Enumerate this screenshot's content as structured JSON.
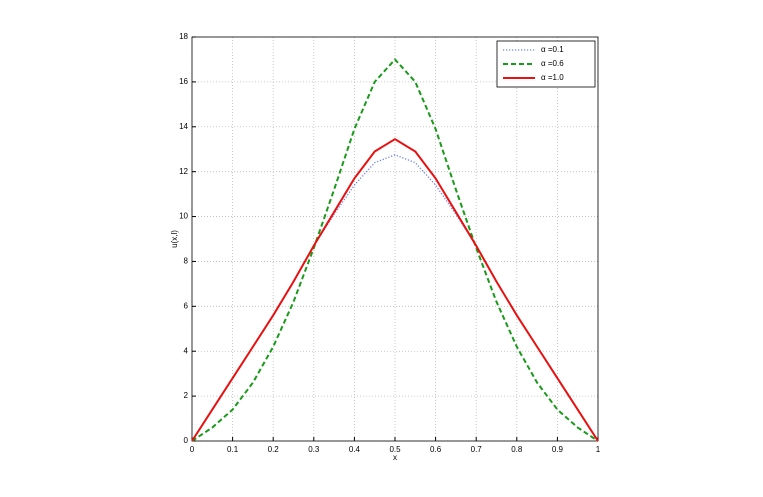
{
  "chart_data": {
    "type": "line",
    "x_label": "x",
    "y_label": "u(x,l)",
    "x": [
      0,
      0.05,
      0.1,
      0.15,
      0.2,
      0.25,
      0.3,
      0.35,
      0.4,
      0.45,
      0.5,
      0.55,
      0.6,
      0.65,
      0.7,
      0.75,
      0.8,
      0.85,
      0.9,
      0.95,
      1
    ],
    "series": [
      {
        "name": "α =0.1",
        "color": "#6a7fe8",
        "dash": "dotted",
        "values": [
          0,
          1.4,
          2.8,
          4.2,
          5.6,
          7.1,
          8.7,
          10.1,
          11.4,
          12.4,
          12.75,
          12.4,
          11.4,
          10.1,
          8.7,
          7.1,
          5.6,
          4.2,
          2.8,
          1.4,
          0
        ]
      },
      {
        "name": "α =0.6",
        "color": "#1a9a1a",
        "dash": "dashed",
        "values": [
          0,
          0.6,
          1.4,
          2.6,
          4.2,
          6.2,
          8.6,
          11.2,
          13.9,
          16.0,
          17.0,
          16.0,
          13.9,
          11.2,
          8.6,
          6.2,
          4.2,
          2.6,
          1.4,
          0.6,
          0
        ]
      },
      {
        "name": "α =1.0",
        "color": "#e81010",
        "dash": "solid",
        "values": [
          0,
          1.4,
          2.8,
          4.2,
          5.6,
          7.1,
          8.7,
          10.2,
          11.7,
          12.9,
          13.45,
          12.9,
          11.7,
          10.2,
          8.7,
          7.1,
          5.6,
          4.2,
          2.8,
          1.4,
          0
        ]
      }
    ],
    "xlim": [
      0,
      1
    ],
    "xticks": [
      0,
      0.1,
      0.2,
      0.3,
      0.4,
      0.5,
      0.6,
      0.7,
      0.8,
      0.9,
      1
    ],
    "ylim": [
      0,
      18
    ],
    "yticks": [
      0,
      2,
      4,
      6,
      8,
      10,
      12,
      14,
      16,
      18
    ],
    "grid": true,
    "legend": "top-right"
  }
}
